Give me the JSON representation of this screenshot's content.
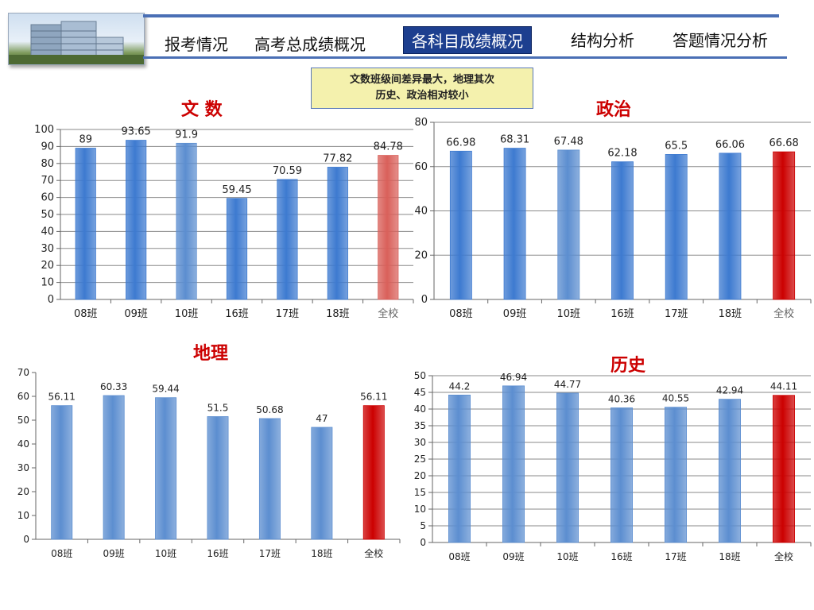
{
  "nav": {
    "items": [
      {
        "label": "报考情况",
        "active": false
      },
      {
        "label": "高考总成绩概况",
        "active": false
      },
      {
        "label": "各科目成绩概况",
        "active": true
      },
      {
        "label": "结构分析",
        "active": false
      },
      {
        "label": "答题情况分析",
        "active": false
      }
    ]
  },
  "note": {
    "line1": "文数班级间差异最大，地理其次",
    "line2": "历史、政治相对较小"
  },
  "colors": {
    "bar_blue": "#3d7ad0",
    "bar_light_blue": "#5c8ed0",
    "bar_highlight_red": "#d9605a",
    "bar_total_red": "#cc0000",
    "title_red": "#cc0000"
  },
  "chart_data": [
    {
      "id": "math",
      "type": "bar",
      "title": "文  数",
      "categories": [
        "08班",
        "09班",
        "10班",
        "16班",
        "17班",
        "18班",
        "全校"
      ],
      "values": [
        89,
        93.65,
        91.9,
        59.45,
        70.59,
        77.82,
        84.78
      ],
      "labels": [
        "89",
        "93.65",
        "91.9",
        "59.45",
        "70.59",
        "77.82",
        "84.78"
      ],
      "ylim": [
        0,
        100
      ],
      "yticks": [
        0,
        10,
        20,
        30,
        40,
        50,
        60,
        70,
        80,
        90,
        100
      ],
      "grid": true,
      "bar_colors": [
        "blue",
        "blue",
        "light_blue",
        "blue",
        "blue",
        "blue",
        "highlight_red"
      ]
    },
    {
      "id": "politics",
      "type": "bar",
      "title": "政治",
      "categories": [
        "08班",
        "09班",
        "10班",
        "16班",
        "17班",
        "18班",
        "全校"
      ],
      "values": [
        66.98,
        68.31,
        67.48,
        62.18,
        65.5,
        66.06,
        66.68
      ],
      "labels": [
        "66.98",
        "68.31",
        "67.48",
        "62.18",
        "65.5",
        "66.06",
        "66.68"
      ],
      "ylim": [
        0,
        80
      ],
      "yticks": [
        0,
        20,
        40,
        60,
        80
      ],
      "grid": true,
      "bar_colors": [
        "blue",
        "blue",
        "light_blue",
        "blue",
        "blue",
        "blue",
        "total_red"
      ]
    },
    {
      "id": "geography",
      "type": "bar",
      "title": "地理",
      "categories": [
        "08班",
        "09班",
        "10班",
        "16班",
        "17班",
        "18班",
        "全校"
      ],
      "values": [
        56.11,
        60.33,
        59.44,
        51.5,
        50.68,
        47,
        56.11
      ],
      "labels": [
        "56.11",
        "60.33",
        "59.44",
        "51.5",
        "50.68",
        "47",
        "56.11"
      ],
      "ylim": [
        0,
        70
      ],
      "yticks": [
        0,
        10,
        20,
        30,
        40,
        50,
        60,
        70
      ],
      "grid": false,
      "bar_colors": [
        "light_blue",
        "light_blue",
        "light_blue",
        "light_blue",
        "light_blue",
        "light_blue",
        "total_red"
      ]
    },
    {
      "id": "history",
      "type": "bar",
      "title": "历史",
      "categories": [
        "08班",
        "09班",
        "10班",
        "16班",
        "17班",
        "18班",
        "全校"
      ],
      "values": [
        44.2,
        46.94,
        44.77,
        40.36,
        40.55,
        42.94,
        44.11
      ],
      "labels": [
        "44.2",
        "46.94",
        "44.77",
        "40.36",
        "40.55",
        "42.94",
        "44.11"
      ],
      "ylim": [
        0,
        50
      ],
      "yticks": [
        0,
        5,
        10,
        15,
        20,
        25,
        30,
        35,
        40,
        45,
        50
      ],
      "grid": true,
      "bar_colors": [
        "light_blue",
        "light_blue",
        "light_blue",
        "light_blue",
        "light_blue",
        "light_blue",
        "total_red"
      ]
    }
  ]
}
